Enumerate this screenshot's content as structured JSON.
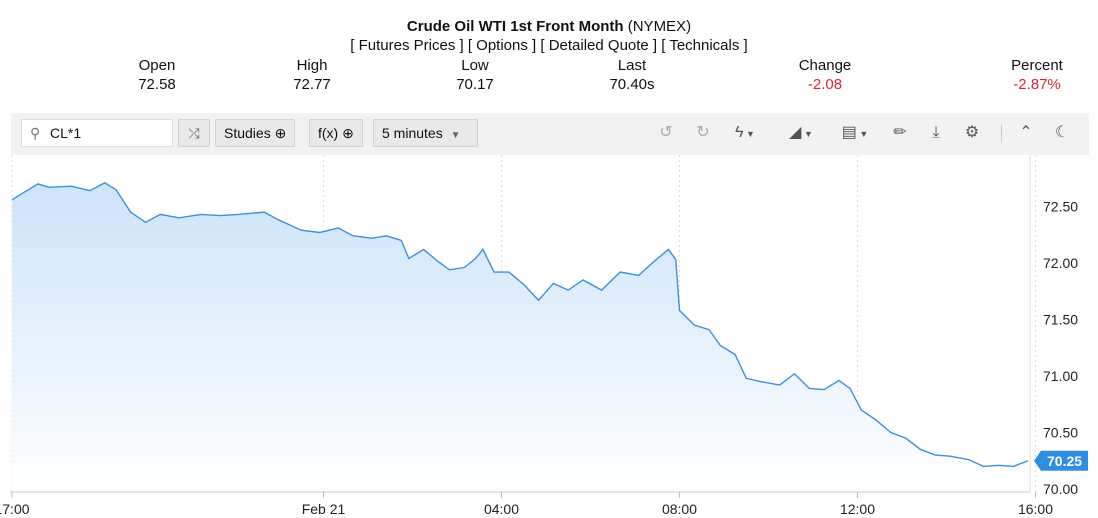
{
  "header": {
    "title_bold": "Crude Oil WTI 1st Front Month",
    "title_exchange": "(NYMEX)",
    "links": "[ Futures Prices ] [ Options ] [ Detailed Quote ] [ Technicals ]"
  },
  "quote": [
    {
      "label": "Open",
      "value": "72.58"
    },
    {
      "label": "High",
      "value": "72.77"
    },
    {
      "label": "Low",
      "value": "70.17"
    },
    {
      "label": "Last",
      "value": "70.40s"
    },
    {
      "label": "Change",
      "value": "-2.08"
    },
    {
      "label": "Percent",
      "value": "-2.87%"
    }
  ],
  "toolbar": {
    "symbol": "CL*1",
    "studies": "Studies",
    "fx": "f(x)",
    "interval": "5 minutes",
    "icons": [
      "undo-icon",
      "redo-icon",
      "lightning-icon",
      "chart-type-icon",
      "layout-icon",
      "pencil-icon",
      "download-icon",
      "gear-icon",
      "collapse-icon",
      "moon-icon"
    ]
  },
  "colors": {
    "line": "#3d8fdb",
    "fill_top": "#cde4fa",
    "last_badge": "#2f8de4",
    "negative": "#e0262e"
  },
  "chart_data": {
    "type": "area",
    "yticks": [
      "72.50",
      "72.00",
      "71.50",
      "71.00",
      "70.50",
      "70.00"
    ],
    "ylim": [
      70.0,
      72.8
    ],
    "xticks": [
      {
        "t": "2/20 17:00",
        "label": "17:00"
      },
      {
        "t": "2/21 00:00",
        "label": "Feb 21"
      },
      {
        "t": "2/21 04:00",
        "label": "04:00"
      },
      {
        "t": "2/21 08:00",
        "label": "08:00"
      },
      {
        "t": "2/21 12:00",
        "label": "12:00"
      },
      {
        "t": "2/21 16:00",
        "label": "16:00"
      }
    ],
    "last_value": "70.25",
    "points": [
      [
        "2/20 17:00",
        72.56
      ],
      [
        "2/20 17:10",
        72.6
      ],
      [
        "2/20 17:35",
        72.7
      ],
      [
        "2/20 17:50",
        72.67
      ],
      [
        "2/20 18:20",
        72.68
      ],
      [
        "2/20 18:45",
        72.64
      ],
      [
        "2/20 19:05",
        72.71
      ],
      [
        "2/20 19:20",
        72.65
      ],
      [
        "2/20 19:40",
        72.45
      ],
      [
        "2/20 20:00",
        72.36
      ],
      [
        "2/20 20:20",
        72.43
      ],
      [
        "2/20 20:45",
        72.4
      ],
      [
        "2/20 21:15",
        72.43
      ],
      [
        "2/20 21:40",
        72.42
      ],
      [
        "2/20 22:05",
        72.43
      ],
      [
        "2/20 22:40",
        72.45
      ],
      [
        "2/20 23:00",
        72.38
      ],
      [
        "2/20 23:30",
        72.29
      ],
      [
        "2/20 23:55",
        72.27
      ],
      [
        "2/21 00:20",
        72.31
      ],
      [
        "2/21 00:40",
        72.24
      ],
      [
        "2/21 01:05",
        72.22
      ],
      [
        "2/21 01:25",
        72.24
      ],
      [
        "2/21 01:45",
        72.2
      ],
      [
        "2/21 01:55",
        72.04
      ],
      [
        "2/21 02:15",
        72.12
      ],
      [
        "2/21 02:35",
        72.01
      ],
      [
        "2/21 02:50",
        71.94
      ],
      [
        "2/21 03:10",
        71.96
      ],
      [
        "2/21 03:25",
        72.04
      ],
      [
        "2/21 03:35",
        72.12
      ],
      [
        "2/21 03:50",
        71.92
      ],
      [
        "2/21 04:10",
        71.92
      ],
      [
        "2/21 04:30",
        71.81
      ],
      [
        "2/21 04:50",
        71.67
      ],
      [
        "2/21 05:10",
        71.82
      ],
      [
        "2/21 05:30",
        71.76
      ],
      [
        "2/21 05:50",
        71.85
      ],
      [
        "2/21 06:15",
        71.76
      ],
      [
        "2/21 06:40",
        71.92
      ],
      [
        "2/21 07:05",
        71.89
      ],
      [
        "2/21 07:25",
        72.01
      ],
      [
        "2/21 07:45",
        72.12
      ],
      [
        "2/21 07:55",
        72.03
      ],
      [
        "2/21 08:00",
        71.58
      ],
      [
        "2/21 08:20",
        71.45
      ],
      [
        "2/21 08:40",
        71.41
      ],
      [
        "2/21 08:55",
        71.27
      ],
      [
        "2/21 09:15",
        71.19
      ],
      [
        "2/21 09:30",
        70.98
      ],
      [
        "2/21 09:50",
        70.95
      ],
      [
        "2/21 10:15",
        70.92
      ],
      [
        "2/21 10:35",
        71.02
      ],
      [
        "2/21 10:55",
        70.89
      ],
      [
        "2/21 11:15",
        70.88
      ],
      [
        "2/21 11:35",
        70.96
      ],
      [
        "2/21 11:50",
        70.89
      ],
      [
        "2/21 12:05",
        70.7
      ],
      [
        "2/21 12:25",
        70.61
      ],
      [
        "2/21 12:45",
        70.5
      ],
      [
        "2/21 13:05",
        70.45
      ],
      [
        "2/21 13:25",
        70.35
      ],
      [
        "2/21 13:45",
        70.3
      ],
      [
        "2/21 14:05",
        70.29
      ],
      [
        "2/21 14:30",
        70.26
      ],
      [
        "2/21 14:50",
        70.2
      ],
      [
        "2/21 15:10",
        70.21
      ],
      [
        "2/21 15:30",
        70.2
      ],
      [
        "2/21 15:50",
        70.25
      ]
    ]
  }
}
